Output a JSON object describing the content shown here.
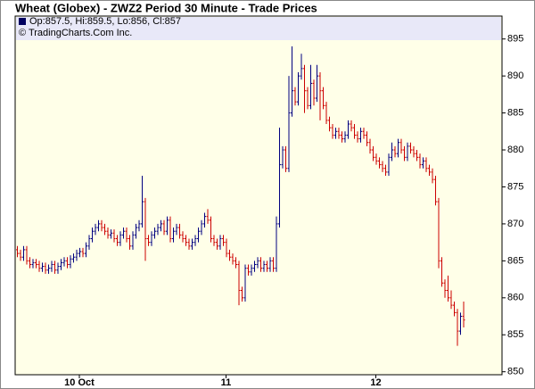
{
  "chart_data": {
    "type": "ohlc",
    "title": "Wheat (Globex) - ZWZ2 Period 30 Minute - Trade Prices",
    "legend_text": "Op:857.5, Hi:859.5, Lo:856, Cl:857",
    "credit": "© TradingCharts.Com Inc.",
    "up_color": "#000080",
    "down_color": "#cc0000",
    "legend_color": "#000060",
    "ylim": [
      849.6,
      898.1
    ],
    "yticks": [
      850,
      855,
      860,
      865,
      870,
      875,
      880,
      885,
      890,
      895
    ],
    "categories": [
      null,
      null,
      null,
      null,
      null,
      null,
      null,
      null,
      null,
      null,
      null,
      null,
      null,
      null,
      null,
      null,
      null,
      null,
      null,
      null,
      "10 Oct",
      null,
      null,
      null,
      null,
      null,
      null,
      null,
      null,
      null,
      null,
      null,
      null,
      null,
      null,
      null,
      null,
      null,
      null,
      null,
      null,
      null,
      null,
      null,
      null,
      null,
      null,
      null,
      null,
      null,
      null,
      null,
      null,
      null,
      null,
      null,
      null,
      null,
      null,
      null,
      null,
      null,
      null,
      null,
      null,
      null,
      null,
      "11",
      null,
      null,
      null,
      null,
      null,
      null,
      null,
      null,
      null,
      null,
      null,
      null,
      null,
      null,
      null,
      null,
      null,
      null,
      null,
      null,
      null,
      null,
      null,
      null,
      null,
      null,
      null,
      null,
      null,
      null,
      null,
      null,
      null,
      null,
      null,
      null,
      null,
      null,
      null,
      null,
      null,
      null,
      null,
      null,
      null,
      null,
      null,
      "12",
      null,
      null,
      null,
      null,
      null,
      null,
      null,
      null,
      null,
      null,
      null,
      null,
      null,
      null,
      null,
      null,
      null,
      null,
      null,
      null,
      null,
      null,
      null,
      null,
      null,
      null,
      null,
      null
    ],
    "open": [
      866.5,
      866,
      865.5,
      866.5,
      865,
      864.5,
      864.75,
      864.5,
      864,
      864.25,
      863.75,
      864,
      864.5,
      863.75,
      864.25,
      864.75,
      865,
      864.5,
      865.25,
      865.5,
      866,
      866.25,
      866,
      867,
      868,
      869,
      869.5,
      870,
      869.5,
      869,
      868.5,
      868.75,
      868,
      867.5,
      868.5,
      869,
      868,
      867,
      868.5,
      869.5,
      870,
      873,
      868,
      867.5,
      868.5,
      869,
      869.5,
      870,
      869,
      870.5,
      868,
      869,
      869.5,
      868.5,
      868,
      867.5,
      867,
      867.5,
      868,
      869,
      870,
      871,
      870.5,
      868,
      867.5,
      867,
      868,
      867.5,
      866,
      865.5,
      865,
      864.5,
      861,
      860,
      864,
      863.5,
      864,
      864.5,
      865,
      864,
      864.5,
      864,
      865,
      864,
      870,
      878,
      880,
      877.5,
      885,
      888,
      886.5,
      890,
      891,
      888,
      886,
      889,
      887,
      890,
      888,
      886,
      884,
      883,
      882,
      882.5,
      882,
      881.5,
      882,
      883.5,
      883,
      882,
      881.5,
      882.5,
      882,
      881,
      880,
      879,
      878.5,
      878,
      877.5,
      877,
      879,
      880,
      879.5,
      881,
      880,
      879,
      880.5,
      880,
      879.5,
      879,
      878,
      878.5,
      877.5,
      877,
      876,
      873,
      865,
      862,
      861,
      860,
      859,
      858,
      855.5,
      857.5
    ],
    "high": [
      867,
      866.5,
      867,
      867,
      865.5,
      865.25,
      865.25,
      865,
      864.75,
      864.75,
      864.5,
      865,
      865,
      864.75,
      865.25,
      865.5,
      865.5,
      865.75,
      866,
      866.5,
      866.75,
      866.75,
      867.5,
      868.5,
      869.5,
      870,
      870.5,
      870.5,
      870,
      869.5,
      869.25,
      869.25,
      868.5,
      869,
      869.5,
      869.5,
      868.5,
      869,
      870,
      870.5,
      876.5,
      873.5,
      868.5,
      869,
      869.5,
      870,
      870.5,
      870.5,
      871,
      871,
      869.5,
      870,
      870,
      869,
      868.5,
      868,
      868,
      868.5,
      869.5,
      870.5,
      871.5,
      872,
      871,
      868.5,
      868,
      868.5,
      868.5,
      868,
      866.5,
      866,
      865.5,
      865,
      861.5,
      864.5,
      864.5,
      864.5,
      865,
      865.5,
      865.5,
      865,
      865,
      865.5,
      865.5,
      871,
      883,
      880.5,
      880.5,
      890,
      894,
      888.5,
      890.5,
      893,
      891.5,
      888.5,
      891.5,
      889.5,
      891.5,
      890.5,
      888.5,
      886.5,
      884.5,
      883.5,
      883,
      883,
      882.5,
      882.5,
      884,
      884,
      883.5,
      882.5,
      883,
      883,
      882.5,
      881.5,
      880.5,
      879.5,
      879,
      878.5,
      878,
      879.5,
      881,
      880.5,
      881.5,
      881.5,
      880.5,
      881,
      881,
      880.5,
      880,
      879.5,
      879,
      879,
      878,
      877.5,
      876.5,
      873.5,
      865.5,
      862.5,
      863,
      861,
      859.5,
      858.5,
      858,
      859.5
    ],
    "low": [
      865.5,
      865,
      865,
      864.5,
      864,
      864,
      864,
      863.5,
      863.5,
      863.25,
      863.25,
      863.5,
      863.25,
      863.25,
      863.75,
      864.25,
      864,
      864,
      864.75,
      865,
      865.5,
      865.5,
      865.5,
      866.5,
      867.5,
      868.5,
      869,
      869,
      868.5,
      868,
      868,
      867.5,
      867,
      867,
      868,
      867.5,
      866.5,
      866.5,
      868,
      869,
      869.5,
      865,
      867,
      867,
      868,
      868.5,
      869,
      868.5,
      868.5,
      867.5,
      867.5,
      868.5,
      868,
      867.5,
      867,
      866.5,
      866.5,
      867,
      867.5,
      868.5,
      869.5,
      870,
      867.5,
      867,
      866.5,
      866.5,
      867,
      865.5,
      865,
      864.5,
      864,
      859,
      859.5,
      859.5,
      863,
      863,
      863.5,
      864,
      863.5,
      863.5,
      863.5,
      863.5,
      863.5,
      863.5,
      869.5,
      877.5,
      877,
      877,
      884.5,
      886,
      886,
      889.5,
      885,
      885.5,
      885.5,
      886,
      886.5,
      884,
      885.5,
      883.5,
      882.5,
      881.5,
      881.5,
      881.5,
      881,
      881,
      881.5,
      882.5,
      881.5,
      881,
      881,
      881.5,
      880.5,
      879.5,
      878.5,
      878,
      877.5,
      877,
      876.5,
      876.5,
      878.5,
      879,
      879,
      879.5,
      878.5,
      878.5,
      879.5,
      879,
      878.5,
      877.5,
      877.5,
      877,
      876.5,
      875.5,
      872.5,
      864,
      861.5,
      860,
      859.5,
      858.5,
      857.5,
      853.5,
      855,
      856
    ],
    "close": [
      866,
      865.5,
      866.5,
      865,
      864.5,
      864.75,
      864.5,
      864,
      864.25,
      863.75,
      864,
      864.5,
      863.75,
      864.25,
      864.75,
      865,
      864.5,
      865.25,
      865.5,
      866,
      866.25,
      866,
      867,
      868,
      869,
      869.5,
      870,
      869.5,
      869,
      868.5,
      868.75,
      868,
      867.5,
      868.5,
      869,
      868,
      867,
      868.5,
      869.5,
      870,
      873,
      868,
      867.5,
      868.5,
      869,
      869.5,
      870,
      869,
      870.5,
      868,
      869,
      869.5,
      868.5,
      868,
      867.5,
      867,
      867.5,
      868,
      869,
      870,
      871,
      870.5,
      868,
      867.5,
      867,
      868,
      867.5,
      866,
      865.5,
      865,
      864.5,
      861,
      860,
      864,
      863.5,
      864,
      864.5,
      865,
      864,
      864.5,
      864,
      865,
      864,
      870,
      878,
      880,
      877.5,
      885,
      888,
      886.5,
      890,
      891,
      888,
      886,
      889,
      887,
      890,
      888,
      886,
      884,
      883,
      882,
      882.5,
      882,
      881.5,
      882,
      883.5,
      883,
      882,
      881.5,
      882.5,
      882,
      881,
      880,
      879,
      878.5,
      878,
      877.5,
      877,
      879,
      880,
      879.5,
      881,
      880,
      879,
      880.5,
      880,
      879.5,
      879,
      878,
      878.5,
      877.5,
      877,
      876,
      873,
      865,
      862,
      861,
      860,
      859,
      858,
      855.5,
      857.5,
      857
    ]
  }
}
